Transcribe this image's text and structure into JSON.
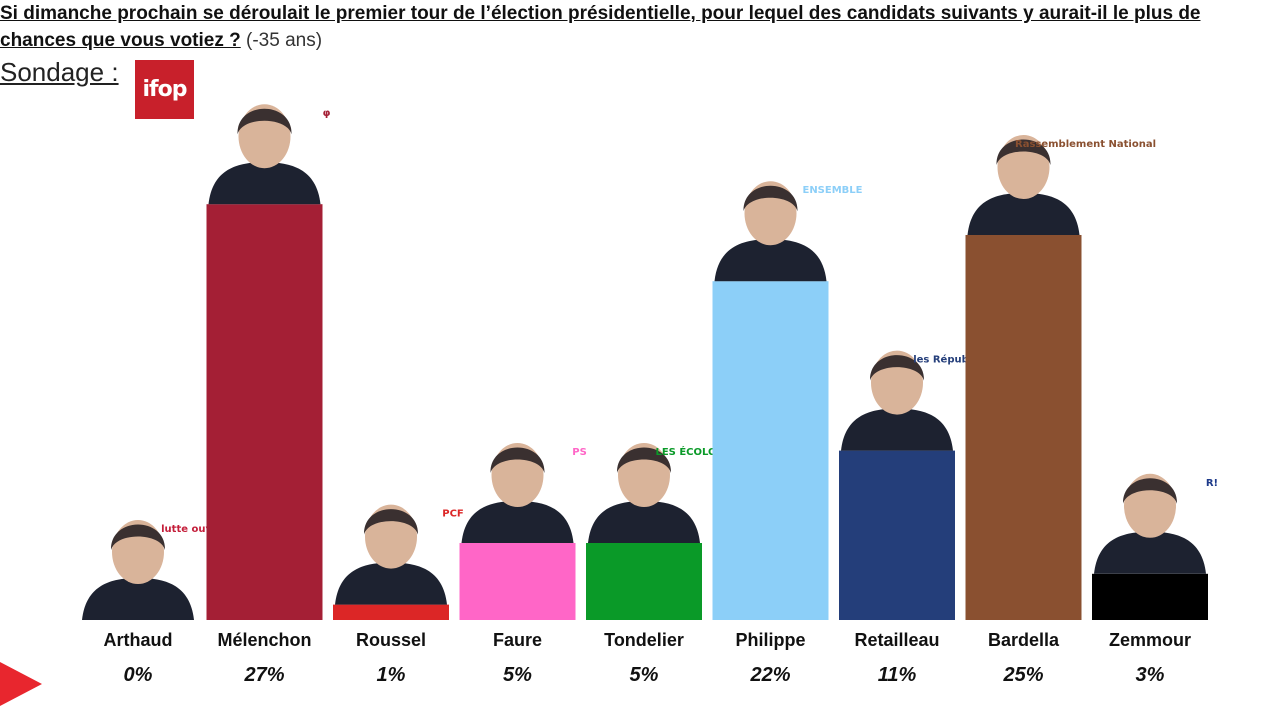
{
  "header": {
    "question": "Si dimanche prochain se déroulait le premier tour de l’élection présidentielle, pour lequel des candidats suivants y aurait-il le plus de chances que vous votiez ?",
    "subtitle": "(-35 ans)",
    "sondage_label": "Sondage :",
    "pollster_logo_text": "ifop"
  },
  "colors": {
    "Arthaud": "#c41e3a",
    "Mélenchon": "#a41f35",
    "Roussel": "#dc2626",
    "Faure": "#ff66c7",
    "Tondelier": "#0a9a28",
    "Philippe": "#8ccff8",
    "Retailleau": "#243e7a",
    "Bardella": "#8a5030",
    "Zemmour": "#000000"
  },
  "chart_data": {
    "type": "bar",
    "title": "",
    "xlabel": "",
    "ylabel": "",
    "ylim": [
      0,
      30
    ],
    "grid": false,
    "categories": [
      "Arthaud",
      "Mélenchon",
      "Roussel",
      "Faure",
      "Tondelier",
      "Philippe",
      "Retailleau",
      "Bardella",
      "Zemmour"
    ],
    "values": [
      0,
      27,
      1,
      5,
      5,
      22,
      11,
      25,
      3
    ],
    "value_labels": [
      "0%",
      "27%",
      "1%",
      "5%",
      "5%",
      "22%",
      "11%",
      "25%",
      "3%"
    ],
    "party_logos": [
      "lutte ouvrière",
      "φ",
      "PCF",
      "PS",
      "LES ÉCOLOGISTES",
      "ENSEMBLE",
      "les Républicains",
      "Rassemblement National",
      "R!"
    ]
  }
}
